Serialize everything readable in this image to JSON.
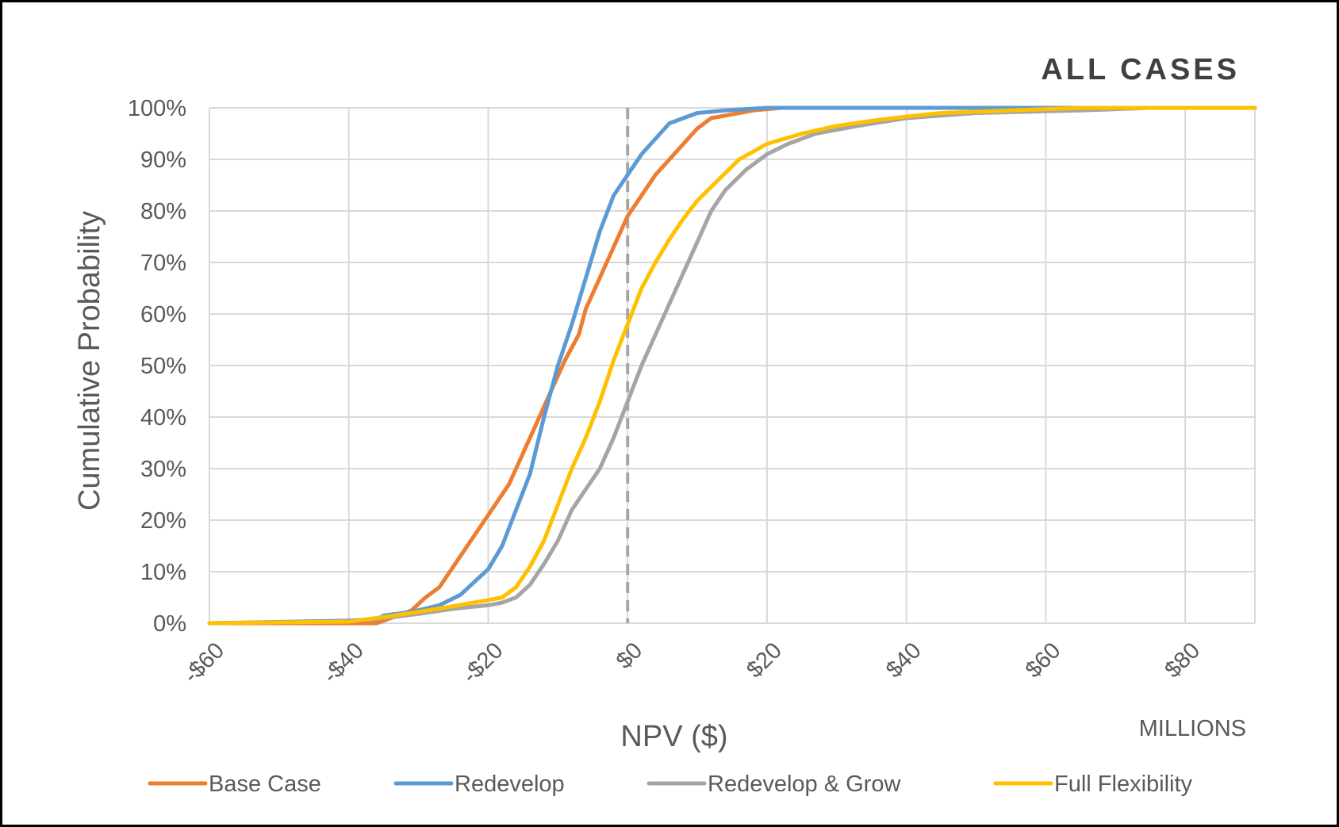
{
  "chart_data": {
    "type": "line",
    "title": "ALL CASES",
    "xlabel": "NPV ($)",
    "ylabel": "Cumulative Probability",
    "x_unit_label": "MILLIONS",
    "xlim": [
      -60,
      90
    ],
    "ylim": [
      0,
      100
    ],
    "x_ticks": [
      -60,
      -40,
      -20,
      0,
      20,
      40,
      60,
      80
    ],
    "x_tick_labels": [
      "-$60",
      "-$40",
      "-$20",
      "$0",
      "$20",
      "$40",
      "$60",
      "$80"
    ],
    "y_ticks": [
      0,
      10,
      20,
      30,
      40,
      50,
      60,
      70,
      80,
      90,
      100
    ],
    "y_tick_labels": [
      "0%",
      "10%",
      "20%",
      "30%",
      "40%",
      "50%",
      "60%",
      "70%",
      "80%",
      "90%",
      "100%"
    ],
    "grid": true,
    "legend_position": "bottom",
    "reference_line": {
      "x": 0,
      "style": "dashed",
      "color": "#a6a6a6"
    },
    "series": [
      {
        "name": "Base Case",
        "color": "#ed7d31",
        "points": [
          [
            -60,
            0
          ],
          [
            -50,
            0
          ],
          [
            -40,
            0
          ],
          [
            -36,
            0
          ],
          [
            -35,
            0.5
          ],
          [
            -33,
            1.5
          ],
          [
            -31,
            2.5
          ],
          [
            -29,
            5
          ],
          [
            -27,
            7
          ],
          [
            -25,
            11
          ],
          [
            -23,
            15
          ],
          [
            -21,
            19
          ],
          [
            -19,
            23
          ],
          [
            -17,
            27
          ],
          [
            -15,
            33
          ],
          [
            -13,
            39
          ],
          [
            -11,
            45
          ],
          [
            -9,
            51
          ],
          [
            -7,
            56
          ],
          [
            -6,
            61
          ],
          [
            -4,
            67
          ],
          [
            -2,
            73
          ],
          [
            0,
            79
          ],
          [
            2,
            83
          ],
          [
            4,
            87
          ],
          [
            6,
            90
          ],
          [
            8,
            93
          ],
          [
            10,
            96
          ],
          [
            12,
            98
          ],
          [
            14,
            98.5
          ],
          [
            16,
            99
          ],
          [
            18,
            99.5
          ],
          [
            22,
            100
          ],
          [
            55,
            100
          ],
          [
            90,
            100
          ]
        ]
      },
      {
        "name": "Redevelop",
        "color": "#5b9bd5",
        "points": [
          [
            -60,
            0
          ],
          [
            -40,
            0.5
          ],
          [
            -36,
            0.8
          ],
          [
            -35,
            1.5
          ],
          [
            -31,
            2.2
          ],
          [
            -27,
            3.5
          ],
          [
            -24,
            5.5
          ],
          [
            -22,
            8
          ],
          [
            -20,
            10.5
          ],
          [
            -18,
            15
          ],
          [
            -16,
            22
          ],
          [
            -14,
            29
          ],
          [
            -12,
            40
          ],
          [
            -10,
            50
          ],
          [
            -8,
            58
          ],
          [
            -6,
            67
          ],
          [
            -4,
            76
          ],
          [
            -2,
            83
          ],
          [
            0,
            87
          ],
          [
            2,
            91
          ],
          [
            4,
            94
          ],
          [
            6,
            97
          ],
          [
            8,
            98
          ],
          [
            10,
            99
          ],
          [
            14,
            99.5
          ],
          [
            20,
            100
          ],
          [
            90,
            100
          ]
        ]
      },
      {
        "name": "Redevelop & Grow",
        "color": "#a5a5a5",
        "points": [
          [
            -60,
            0
          ],
          [
            -40,
            0.3
          ],
          [
            -35,
            1
          ],
          [
            -30,
            1.8
          ],
          [
            -25,
            2.8
          ],
          [
            -20,
            3.5
          ],
          [
            -18,
            4
          ],
          [
            -16,
            5
          ],
          [
            -14,
            7.5
          ],
          [
            -12,
            11.5
          ],
          [
            -10,
            16
          ],
          [
            -8,
            22
          ],
          [
            -6,
            26
          ],
          [
            -4,
            30
          ],
          [
            -2,
            36
          ],
          [
            0,
            43
          ],
          [
            2,
            50
          ],
          [
            4,
            56
          ],
          [
            6,
            62
          ],
          [
            8,
            68
          ],
          [
            10,
            74
          ],
          [
            12,
            80
          ],
          [
            14,
            84
          ],
          [
            17,
            88
          ],
          [
            20,
            91
          ],
          [
            23,
            93
          ],
          [
            27,
            95
          ],
          [
            33,
            96.5
          ],
          [
            40,
            98
          ],
          [
            50,
            99
          ],
          [
            65,
            99.5
          ],
          [
            75,
            100
          ],
          [
            90,
            100
          ]
        ]
      },
      {
        "name": "Full Flexibility",
        "color": "#ffc000",
        "points": [
          [
            -60,
            0
          ],
          [
            -40,
            0.3
          ],
          [
            -35,
            1.2
          ],
          [
            -30,
            2.2
          ],
          [
            -25,
            3.3
          ],
          [
            -20,
            4.5
          ],
          [
            -18,
            5
          ],
          [
            -16,
            7
          ],
          [
            -14,
            11
          ],
          [
            -12,
            16
          ],
          [
            -10,
            23
          ],
          [
            -8,
            30
          ],
          [
            -6,
            36
          ],
          [
            -4,
            43
          ],
          [
            -2,
            51
          ],
          [
            0,
            58
          ],
          [
            2,
            65
          ],
          [
            4,
            70
          ],
          [
            6,
            74.5
          ],
          [
            8,
            78.5
          ],
          [
            10,
            82
          ],
          [
            13,
            86
          ],
          [
            16,
            90
          ],
          [
            20,
            93
          ],
          [
            25,
            95
          ],
          [
            30,
            96.5
          ],
          [
            35,
            97.5
          ],
          [
            40,
            98.3
          ],
          [
            45,
            99
          ],
          [
            55,
            99.5
          ],
          [
            65,
            100
          ],
          [
            90,
            100
          ]
        ]
      }
    ]
  }
}
